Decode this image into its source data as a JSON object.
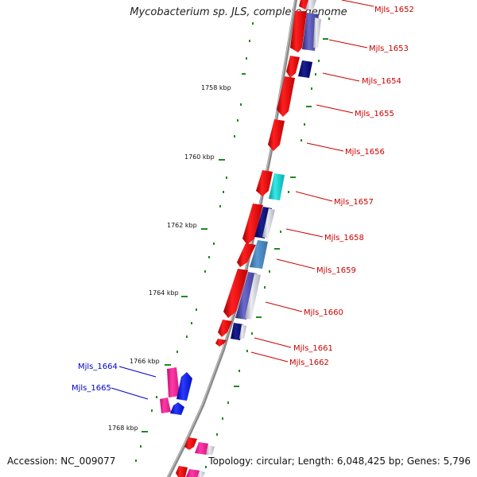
{
  "header": {
    "title": "Mycobacterium sp. JLS, complete genome"
  },
  "footer": {
    "accession": "Accession: NC_009077",
    "topology": "Topology: circular; Length: 6,048,425 bp; Genes: 5,796"
  },
  "colors": {
    "backbone": "#888888",
    "ticks": "#228B22",
    "forward_label": "#0000CC",
    "reverse_label": "#CC0000"
  },
  "ruler": {
    "unit": "kbp",
    "labels": [
      "1758 kbp",
      "1760 kbp",
      "1762 kbp",
      "1764 kbp",
      "1766 kbp",
      "1768 kbp"
    ]
  },
  "reverse_genes": {
    "label_color": "#CC0000",
    "items": [
      {
        "label": "Mjls_1652"
      },
      {
        "label": "Mjls_1653"
      },
      {
        "label": "Mjls_1654"
      },
      {
        "label": "Mjls_1655"
      },
      {
        "label": "Mjls_1656"
      },
      {
        "label": "Mjls_1657"
      },
      {
        "label": "Mjls_1658"
      },
      {
        "label": "Mjls_1659"
      },
      {
        "label": "Mjls_1660"
      },
      {
        "label": "Mjls_1661"
      },
      {
        "label": "Mjls_1662"
      }
    ]
  },
  "forward_genes": {
    "label_color": "#0000CC",
    "items": [
      {
        "label": "Mjls_1664"
      },
      {
        "label": "Mjls_1665"
      }
    ]
  }
}
